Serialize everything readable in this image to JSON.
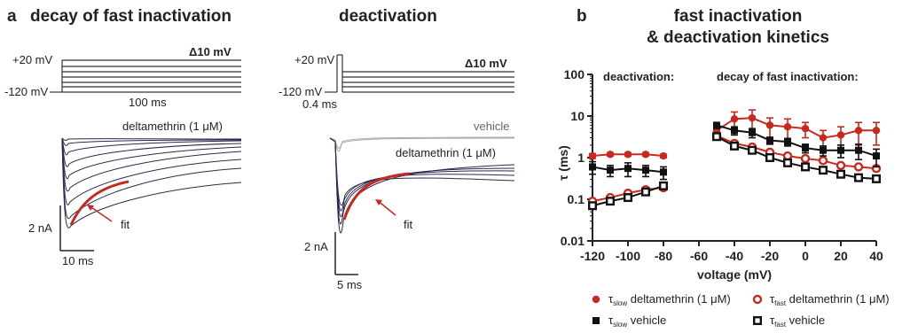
{
  "panel_a": {
    "letter": "a",
    "inactivation": {
      "title": "decay of fast inactivation",
      "protocol_top": "+20 mV",
      "protocol_bottom": "-120 mV",
      "step_label": "Δ10 mV",
      "duration_label": "100 ms",
      "drug_label": "deltamethrin (1 μM)",
      "fit_label": "fit",
      "scale_current": "2 nA",
      "scale_time": "10 ms"
    },
    "deactivation": {
      "title": "deactivation",
      "protocol_top": "+20 mV",
      "protocol_bottom": "-120 mV",
      "step_label": "Δ10 mV",
      "duration_label": "0.4 ms",
      "vehicle_label": "vehicle",
      "drug_label": "deltamethrin (1 μM)",
      "fit_label": "fit",
      "scale_current": "2 nA",
      "scale_time": "5 ms"
    }
  },
  "panel_b": {
    "letter": "b",
    "title_line1": "fast inactivation",
    "title_line2": "& deactivation kinetics",
    "deactivation_label": "deactivation:",
    "inactivation_label": "decay of fast inactivation:"
  },
  "colors": {
    "drug": "#c8281e",
    "vehicle": "#111111",
    "traces": "#2a2a4e",
    "vehicle_trace": "#aaaaaa"
  },
  "chart_data": {
    "type": "scatter",
    "title": "fast inactivation & deactivation kinetics",
    "xlabel": "voltage (mV)",
    "ylabel": "τ (ms)",
    "xlim": [
      -120,
      40
    ],
    "ylim": [
      0.01,
      100
    ],
    "yscale": "log",
    "x_ticks": [
      "-120",
      "-100",
      "-80",
      "-60",
      "-40",
      "-20",
      "0",
      "20",
      "40"
    ],
    "y_ticks": [
      "0.01",
      "0.1",
      "1",
      "10",
      "100"
    ],
    "legend_position": "bottom",
    "series": [
      {
        "name": "τslow deltamethrin (1 μM)",
        "label_main": "τ",
        "label_sub": "slow",
        "label_rest": " deltamethrin (1 μM)",
        "marker": "filled-circle",
        "color": "#c8281e",
        "segments": [
          {
            "x": [
              -120,
              -110,
              -100,
              -90,
              -80
            ],
            "y": [
              1.1,
              1.2,
              1.2,
              1.2,
              1.1
            ],
            "err": [
              0.15,
              0.1,
              0.1,
              0.1,
              0.1
            ]
          },
          {
            "x": [
              -50,
              -40,
              -30,
              -20,
              -10,
              0,
              10,
              20,
              30,
              40
            ],
            "y": [
              4.5,
              8.5,
              9.0,
              6.0,
              5.5,
              5.0,
              3.0,
              3.5,
              4.5,
              4.5
            ],
            "err": [
              1.5,
              4.0,
              5.0,
              3.0,
              3.0,
              2.0,
              1.5,
              2.0,
              2.5,
              2.5
            ]
          }
        ]
      },
      {
        "name": "τfast deltamethrin (1 μM)",
        "label_main": "τ",
        "label_sub": "fast",
        "label_rest": " deltamethrin (1 μM)",
        "marker": "open-circle",
        "color": "#c8281e",
        "segments": [
          {
            "x": [
              -120,
              -110,
              -100,
              -90,
              -80
            ],
            "y": [
              0.09,
              0.11,
              0.14,
              0.17,
              0.19
            ],
            "err": [
              0.01,
              0.01,
              0.02,
              0.02,
              0.02
            ]
          },
          {
            "x": [
              -50,
              -40,
              -30,
              -20,
              -10,
              0,
              10,
              20,
              30,
              40
            ],
            "y": [
              3.4,
              2.2,
              1.8,
              1.35,
              1.1,
              0.95,
              0.85,
              0.65,
              0.6,
              0.55
            ],
            "err": [
              0.4,
              0.3,
              0.2,
              0.15,
              0.1,
              0.1,
              0.1,
              0.08,
              0.08,
              0.08
            ]
          }
        ]
      },
      {
        "name": "τslow vehicle",
        "label_main": "τ",
        "label_sub": "slow",
        "label_rest": " vehicle",
        "marker": "filled-square",
        "color": "#111111",
        "segments": [
          {
            "x": [
              -120,
              -110,
              -100,
              -90,
              -80
            ],
            "y": [
              0.6,
              0.5,
              0.55,
              0.5,
              0.45
            ],
            "err": [
              0.2,
              0.15,
              0.2,
              0.15,
              0.15
            ]
          },
          {
            "x": [
              -50,
              -40,
              -30,
              -20,
              -10,
              0,
              10,
              20,
              30,
              40
            ],
            "y": [
              6.0,
              4.5,
              4.0,
              2.6,
              2.4,
              1.7,
              1.5,
              1.5,
              1.5,
              1.1
            ],
            "err": [
              1.0,
              1.0,
              1.0,
              0.5,
              0.5,
              0.4,
              0.4,
              0.5,
              0.6,
              0.5
            ]
          }
        ]
      },
      {
        "name": "τfast vehicle",
        "label_main": "τ",
        "label_sub": "fast",
        "label_rest": " vehicle",
        "marker": "open-square",
        "color": "#111111",
        "segments": [
          {
            "x": [
              -120,
              -110,
              -100,
              -90,
              -80
            ],
            "y": [
              0.07,
              0.09,
              0.11,
              0.15,
              0.21
            ],
            "err": [
              0.01,
              0.01,
              0.01,
              0.02,
              0.03
            ]
          },
          {
            "x": [
              -50,
              -40,
              -30,
              -20,
              -10,
              0,
              10,
              20,
              30,
              40
            ],
            "y": [
              3.2,
              1.9,
              1.5,
              1.0,
              0.75,
              0.6,
              0.5,
              0.4,
              0.33,
              0.31
            ],
            "err": [
              0.3,
              0.2,
              0.15,
              0.1,
              0.08,
              0.06,
              0.05,
              0.04,
              0.03,
              0.03
            ]
          }
        ]
      }
    ]
  }
}
